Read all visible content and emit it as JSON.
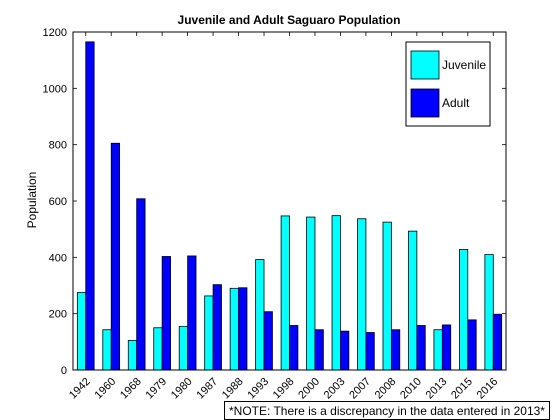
{
  "chart_data": {
    "type": "bar",
    "title": "Juvenile and Adult Saguaro Population",
    "xlabel": "",
    "ylabel": "Population",
    "categories": [
      "1942",
      "1960",
      "1968",
      "1979",
      "1980",
      "1987",
      "1988",
      "1993",
      "1998",
      "2000",
      "2003",
      "2007",
      "2008",
      "2010",
      "2013",
      "2015",
      "2016"
    ],
    "series": [
      {
        "name": "Juvenile",
        "color": "#00FFFF",
        "values": [
          275,
          143,
          105,
          150,
          155,
          263,
          290,
          392,
          547,
          543,
          548,
          537,
          525,
          493,
          143,
          428,
          410
        ]
      },
      {
        "name": "Adult",
        "color": "#0000FF",
        "values": [
          1165,
          805,
          608,
          403,
          405,
          303,
          292,
          207,
          158,
          143,
          138,
          133,
          143,
          158,
          160,
          178,
          198
        ]
      }
    ],
    "ylim": [
      0,
      1200
    ],
    "yticks": [
      0,
      200,
      400,
      600,
      800,
      1000,
      1200
    ],
    "grid": false,
    "legend_position": "top-right"
  },
  "note": "*NOTE: There is a discrepancy in the data entered in 2013*"
}
